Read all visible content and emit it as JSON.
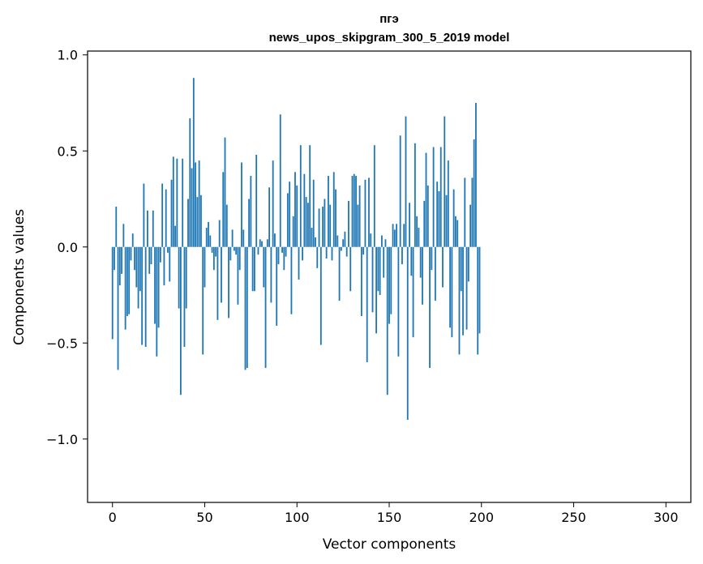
{
  "chart_data": {
    "type": "bar",
    "title_line1": "пгэ",
    "title_line2": "news_upos_skipgram_300_5_2019 model",
    "xlabel": "Vector components",
    "ylabel": "Components values",
    "xlim": [
      -13.5,
      313.5
    ],
    "ylim": [
      -1.33,
      1.02
    ],
    "xticks": [
      0,
      50,
      100,
      150,
      200,
      250,
      300
    ],
    "xtick_labels": [
      "0",
      "50",
      "100",
      "150",
      "200",
      "250",
      "300"
    ],
    "yticks": [
      1.0,
      0.5,
      0.0,
      -0.5,
      -1.0
    ],
    "ytick_labels": [
      "1.0",
      "0.5",
      "0.0",
      "−0.5",
      "−1.0"
    ],
    "bar_color": "#1f77b4",
    "values": [
      -0.48,
      -0.12,
      0.21,
      -0.64,
      -0.2,
      -0.14,
      0.12,
      -0.43,
      -0.36,
      -0.35,
      -0.07,
      0.07,
      -0.12,
      -0.21,
      -0.32,
      -0.23,
      -0.51,
      0.33,
      -0.52,
      0.19,
      -0.14,
      -0.09,
      0.19,
      -0.4,
      -0.57,
      -0.42,
      -0.08,
      0.33,
      -0.2,
      0.3,
      -0.03,
      -0.18,
      0.35,
      0.47,
      0.11,
      0.46,
      -0.32,
      -0.77,
      0.46,
      -0.52,
      -0.32,
      0.25,
      0.67,
      0.41,
      0.88,
      0.44,
      0.26,
      0.45,
      0.27,
      -0.56,
      -0.21,
      0.1,
      0.13,
      0.06,
      -0.03,
      -0.12,
      -0.05,
      -0.38,
      0.14,
      -0.29,
      0.39,
      0.57,
      0.22,
      -0.37,
      -0.07,
      0.09,
      -0.02,
      -0.04,
      -0.3,
      -0.12,
      0.44,
      0.09,
      -0.64,
      -0.63,
      0.25,
      0.37,
      -0.23,
      -0.23,
      0.48,
      -0.04,
      0.04,
      0.03,
      -0.21,
      -0.63,
      0.04,
      0.31,
      -0.29,
      0.45,
      0.07,
      -0.41,
      -0.09,
      0.69,
      -0.03,
      -0.12,
      -0.05,
      0.28,
      0.34,
      -0.35,
      0.16,
      0.39,
      0.32,
      -0.17,
      0.53,
      -0.07,
      0.38,
      0.26,
      0.23,
      0.53,
      0.1,
      0.35,
      0.05,
      -0.11,
      0.2,
      -0.51,
      0.21,
      0.25,
      -0.06,
      0.37,
      0.22,
      -0.07,
      0.39,
      0.3,
      0.06,
      -0.28,
      -0.02,
      0.04,
      0.08,
      -0.05,
      0.24,
      -0.23,
      0.37,
      0.38,
      0.37,
      0.22,
      0.32,
      -0.36,
      -0.04,
      0.35,
      -0.6,
      0.36,
      0.07,
      -0.34,
      0.53,
      -0.45,
      -0.23,
      -0.25,
      0.06,
      -0.16,
      0.04,
      -0.77,
      -0.4,
      -0.35,
      0.12,
      0.09,
      0.12,
      -0.57,
      0.58,
      -0.09,
      0.12,
      0.68,
      -0.9,
      0.23,
      -0.15,
      -0.47,
      0.54,
      0.16,
      0.1,
      -0.16,
      -0.3,
      0.24,
      0.49,
      0.32,
      -0.63,
      -0.12,
      0.52,
      -0.28,
      0.34,
      0.29,
      0.52,
      -0.21,
      0.68,
      0.27,
      0.45,
      -0.42,
      -0.47,
      0.3,
      0.16,
      0.14,
      -0.56,
      -0.23,
      -0.46,
      0.36,
      -0.43,
      -0.18,
      0.22,
      0.36,
      0.56,
      0.75,
      -0.56,
      -0.45
    ]
  }
}
